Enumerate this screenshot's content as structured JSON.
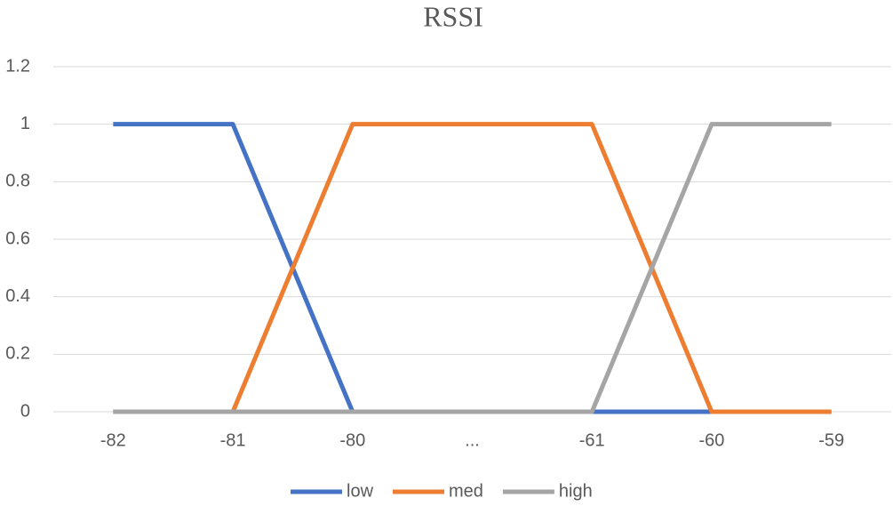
{
  "chart_data": {
    "type": "line",
    "title": "RSSI",
    "categories": [
      "-82",
      "-81",
      "-80",
      "...",
      "-61",
      "-60",
      "-59"
    ],
    "series": [
      {
        "name": "low",
        "color": "#4472c4",
        "values": [
          1,
          1,
          0,
          0,
          0,
          0,
          0
        ]
      },
      {
        "name": "med",
        "color": "#ed7d31",
        "values": [
          0,
          0,
          1,
          1,
          1,
          0,
          0
        ]
      },
      {
        "name": "high",
        "color": "#a5a5a5",
        "values": [
          0,
          0,
          0,
          0,
          0,
          1,
          1
        ]
      }
    ],
    "ylim": [
      0,
      1.2
    ],
    "yticks": [
      0,
      0.2,
      0.4,
      0.6,
      0.8,
      1,
      1.2
    ],
    "grid": true,
    "legend": "bottom"
  }
}
